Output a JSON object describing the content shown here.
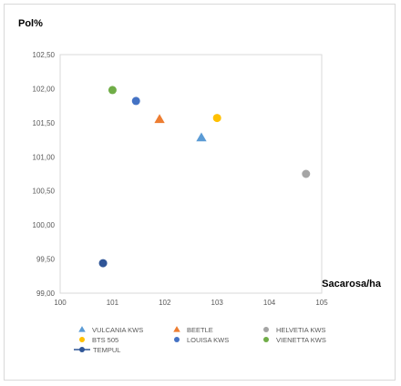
{
  "chart_data": {
    "type": "scatter",
    "title": "",
    "ylabel": "Pol%",
    "xlabel": "Sacarosa/ha",
    "xlim": [
      100,
      105
    ],
    "ylim": [
      99.0,
      102.5
    ],
    "x_ticks": [
      100,
      101,
      102,
      103,
      104,
      105
    ],
    "x_tick_labels": [
      "100",
      "101",
      "102",
      "103",
      "104",
      "105"
    ],
    "y_ticks": [
      99.0,
      99.5,
      100.0,
      100.5,
      101.0,
      101.5,
      102.0,
      102.5
    ],
    "y_tick_labels": [
      "99,00",
      "99,50",
      "100,00",
      "100,50",
      "101,00",
      "101,50",
      "102,00",
      "102,50"
    ],
    "grid": false,
    "legend_position": "bottom",
    "series": [
      {
        "name": "VULCANIA KWS",
        "marker": "triangle",
        "color": "#5b9bd5",
        "x": 102.7,
        "y": 101.28
      },
      {
        "name": "BEETLE",
        "marker": "triangle",
        "color": "#ed7d31",
        "x": 101.9,
        "y": 101.55
      },
      {
        "name": "HELVETIA KWS",
        "marker": "circle",
        "color": "#a5a5a5",
        "x": 104.7,
        "y": 100.75
      },
      {
        "name": "BTS 505",
        "marker": "circle",
        "color": "#ffc000",
        "x": 103.0,
        "y": 101.57
      },
      {
        "name": "LOUISA KWS",
        "marker": "circle",
        "color": "#4472c4",
        "x": 101.45,
        "y": 101.82
      },
      {
        "name": "VIENETTA KWS",
        "marker": "circle",
        "color": "#70ad47",
        "x": 101.0,
        "y": 101.98
      },
      {
        "name": "TEMPUL",
        "marker": "line-circle",
        "color": "#2f5597",
        "x": 100.82,
        "y": 99.44
      }
    ]
  }
}
